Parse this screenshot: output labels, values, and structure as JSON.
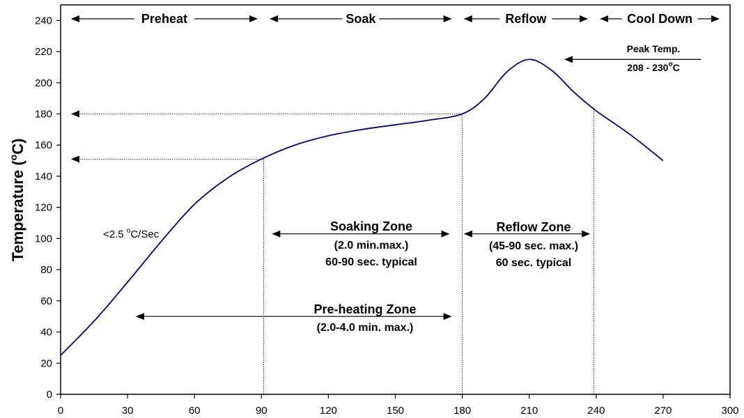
{
  "chart_data": {
    "type": "line",
    "title": "",
    "xlabel": "",
    "ylabel": "Temperature (°C)",
    "xlim": [
      0,
      300
    ],
    "ylim": [
      0,
      250
    ],
    "xticks": [
      0,
      30,
      60,
      90,
      120,
      150,
      180,
      210,
      240,
      270,
      300
    ],
    "yticks": [
      0,
      20,
      40,
      60,
      80,
      100,
      120,
      140,
      160,
      180,
      200,
      220,
      240
    ],
    "grid": false,
    "series": [
      {
        "color": "#00007f",
        "x": [
          0,
          15,
          30,
          45,
          60,
          75,
          90,
          105,
          120,
          135,
          150,
          165,
          180,
          190,
          200,
          210,
          220,
          230,
          240,
          255,
          270
        ],
        "y": [
          25,
          47,
          72,
          98,
          122,
          139,
          151,
          160,
          166,
          170,
          173,
          176,
          180,
          190,
          207,
          215,
          208,
          194,
          182,
          167,
          150
        ]
      }
    ],
    "phases": [
      {
        "label": "Preheat",
        "x_start": 5,
        "x_end": 88
      },
      {
        "label": "Soak",
        "x_start": 94,
        "x_end": 175
      },
      {
        "label": "Reflow",
        "x_start": 181,
        "x_end": 236
      },
      {
        "label": "Cool Down",
        "x_start": 242,
        "x_end": 295
      }
    ],
    "reference_lines": {
      "horizontal": [
        {
          "y": 180,
          "x_from": 5,
          "x_to": 180
        },
        {
          "y": 151,
          "x_from": 5,
          "x_to": 91
        }
      ],
      "vertical": [
        {
          "x": 91,
          "y_from": 0,
          "y_to": 151
        },
        {
          "x": 180,
          "y_from": 0,
          "y_to": 180
        },
        {
          "x": 239,
          "y_from": 0,
          "y_to": 184
        }
      ]
    },
    "annotations": {
      "peak": {
        "line1": "Peak Temp.",
        "line2_prefix": "208 - 230",
        "deg": "o",
        "line2_suffix": "C",
        "arrow_y": 215,
        "arrow_x_from": 287,
        "arrow_x_to": 226
      },
      "slope": {
        "prefix": "<2.5 ",
        "deg": "o",
        "suffix": "C/Sec"
      },
      "soaking_zone": {
        "title": "Soaking Zone",
        "line2": "(2.0 min.max.)",
        "line3": "60-90 sec. typical",
        "x_start": 95,
        "x_end": 174,
        "y": 103
      },
      "reflow_zone": {
        "title": "Reflow Zone",
        "line2": "(45-90 sec. max.)",
        "line3": "60 sec. typical",
        "x_start": 181,
        "x_end": 237,
        "y": 103
      },
      "preheating_zone": {
        "title": "Pre-heating Zone",
        "line2": "(2.0-4.0 min. max.)",
        "x_start": 34,
        "x_end": 175,
        "y": 50
      }
    },
    "ylabel_parts": {
      "prefix": "Temperature (",
      "deg": "o",
      "suffix": "C)"
    }
  }
}
